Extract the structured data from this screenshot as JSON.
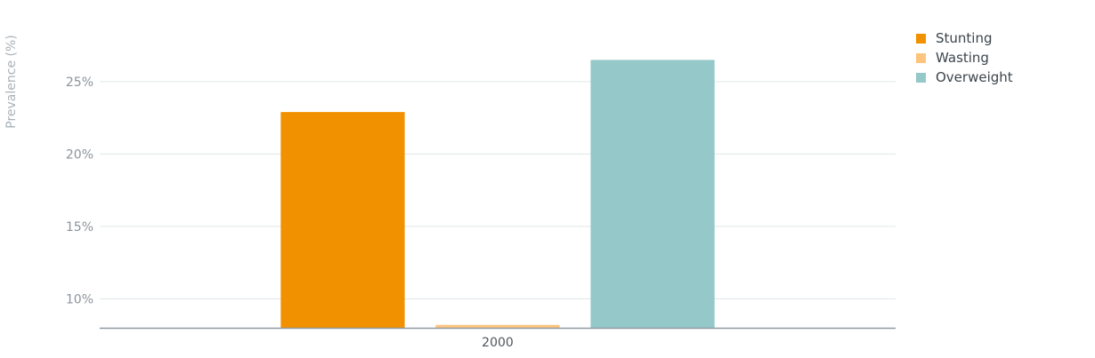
{
  "chart_data": {
    "type": "bar",
    "categories": [
      "2000"
    ],
    "series": [
      {
        "name": "Stunting",
        "values": [
          22.9
        ],
        "color": "#f29100"
      },
      {
        "name": "Wasting",
        "values": [
          8.2
        ],
        "color": "#fdc47e"
      },
      {
        "name": "Overweight",
        "values": [
          26.5
        ],
        "color": "#95c8c8"
      }
    ],
    "ylabel": "Prevalence (%)",
    "ylim": [
      8,
      28
    ],
    "yticks": [
      10,
      15,
      20,
      25
    ],
    "ytick_suffix": "%",
    "grid": true,
    "legend_position": "top-right"
  }
}
